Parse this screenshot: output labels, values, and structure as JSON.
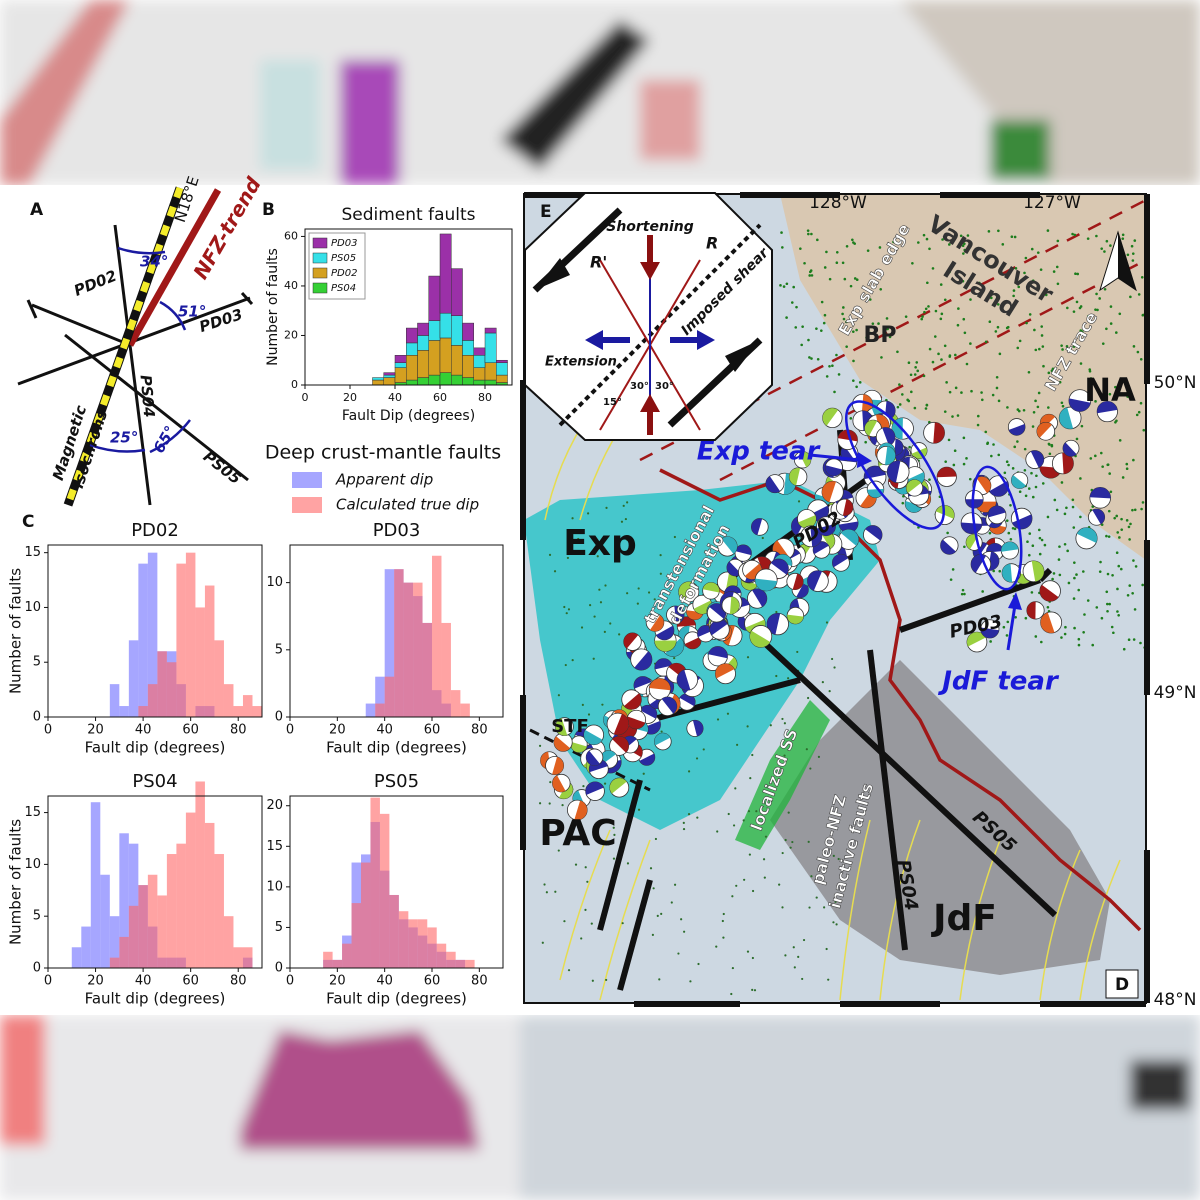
{
  "panel_a": {
    "label": "A",
    "n18": "N18°E",
    "nfz": "NFZ-trend",
    "a34": "34°",
    "a51": "51°",
    "pd02": "PD02",
    "pd03": "PD03",
    "ps04": "PS04",
    "ps05": "PS05",
    "a25": "25°",
    "a65": "65°",
    "isochrons": [
      "Magnetic",
      "isochrons"
    ]
  },
  "panel_b_label": "B",
  "panel_c_label": "C",
  "legend_c": {
    "title": "Deep crust-mantle faults",
    "items": [
      {
        "name": "Apparent dip",
        "color": "#6b6bff"
      },
      {
        "name": "Calculated true dip",
        "color": "#ff6666"
      }
    ]
  },
  "chart_data": [
    {
      "type": "histogram",
      "title": "Sediment faults",
      "xlabel": "Fault Dip (degrees)",
      "ylabel": "Number of faults",
      "stacked": true,
      "legend": "upper left",
      "bins": [
        30,
        35,
        40,
        45,
        50,
        55,
        60,
        65,
        70,
        75,
        80,
        85,
        90
      ],
      "xlim": [
        0,
        92
      ],
      "ylim": [
        0,
        63
      ],
      "xticks": [
        0,
        20,
        40,
        60,
        80
      ],
      "yticks": [
        0,
        20,
        40,
        60
      ],
      "series": [
        {
          "name": "PD03",
          "color": "#9b30a8",
          "values": [
            0,
            1,
            3,
            6,
            5,
            18,
            32,
            19,
            7,
            3,
            2,
            1
          ]
        },
        {
          "name": "PS05",
          "color": "#35e0e8",
          "values": [
            1,
            1,
            2,
            5,
            6,
            8,
            10,
            12,
            6,
            5,
            12,
            5
          ]
        },
        {
          "name": "PD02",
          "color": "#d4a020",
          "values": [
            2,
            3,
            6,
            10,
            11,
            14,
            14,
            12,
            9,
            5,
            7,
            3
          ]
        },
        {
          "name": "PS04",
          "color": "#35d035",
          "values": [
            0,
            0,
            1,
            2,
            3,
            4,
            5,
            4,
            3,
            2,
            2,
            1
          ]
        }
      ]
    },
    {
      "type": "histogram",
      "title": "PD02",
      "xlabel": "Fault dip (degrees)",
      "ylabel": "Number of faults",
      "bins": [
        26,
        30,
        34,
        38,
        42,
        46,
        50,
        54,
        58,
        62,
        66,
        70,
        74,
        78,
        82,
        86,
        90
      ],
      "xlim": [
        0,
        90
      ],
      "ylim": [
        0,
        15.7
      ],
      "xticks": [
        0,
        20,
        40,
        60,
        80
      ],
      "yticks": [
        0,
        5,
        10,
        15
      ],
      "series": [
        {
          "values": [
            3,
            1,
            7,
            14,
            15,
            6,
            6,
            3,
            0,
            1,
            1,
            0,
            0,
            0,
            0,
            0
          ]
        },
        {
          "values": [
            0,
            0,
            0,
            1,
            3,
            6,
            5,
            14,
            15,
            10,
            12,
            7,
            3,
            1,
            2,
            1
          ]
        }
      ]
    },
    {
      "type": "histogram",
      "title": "PD03",
      "xlabel": "Fault dip (degrees)",
      "bins": [
        32,
        36,
        40,
        44,
        48,
        52,
        56,
        60,
        64,
        68,
        72,
        76
      ],
      "xlim": [
        0,
        90
      ],
      "ylim": [
        0,
        12.8
      ],
      "xticks": [
        0,
        20,
        40,
        60,
        80
      ],
      "yticks": [
        0,
        5,
        10
      ],
      "series": [
        {
          "values": [
            1,
            3,
            11,
            11,
            10,
            9,
            7,
            2,
            1,
            0,
            0
          ]
        },
        {
          "values": [
            0,
            1,
            3,
            11,
            10,
            10,
            7,
            12,
            7,
            2,
            1
          ]
        }
      ]
    },
    {
      "type": "histogram",
      "title": "PS04",
      "xlabel": "Fault dip (degrees)",
      "ylabel": "Number of faults",
      "bins": [
        10,
        14,
        18,
        22,
        26,
        30,
        34,
        38,
        42,
        46,
        50,
        54,
        58,
        62,
        66,
        70,
        74,
        78,
        82,
        86
      ],
      "xlim": [
        0,
        90
      ],
      "ylim": [
        0,
        16.6
      ],
      "xticks": [
        0,
        20,
        40,
        60,
        80
      ],
      "yticks": [
        0,
        5,
        10,
        15
      ],
      "series": [
        {
          "values": [
            2,
            4,
            16,
            9,
            5,
            13,
            12,
            8,
            4,
            1,
            1,
            1,
            0,
            0,
            0,
            0,
            0,
            0,
            1
          ]
        },
        {
          "values": [
            0,
            0,
            0,
            0,
            1,
            3,
            6,
            8,
            9,
            7,
            11,
            12,
            15,
            18,
            14,
            11,
            5,
            2,
            2
          ]
        }
      ]
    },
    {
      "type": "histogram",
      "title": "PS05",
      "xlabel": "Fault dip (degrees)",
      "bins": [
        14,
        18,
        22,
        26,
        30,
        34,
        38,
        42,
        46,
        50,
        54,
        58,
        62,
        66,
        70,
        74,
        78
      ],
      "xlim": [
        0,
        90
      ],
      "ylim": [
        0,
        21.2
      ],
      "xticks": [
        0,
        20,
        40,
        60,
        80
      ],
      "yticks": [
        0,
        5,
        10,
        15,
        20
      ],
      "series": [
        {
          "values": [
            1,
            1,
            4,
            13,
            14,
            18,
            12,
            9,
            6,
            5,
            4,
            3,
            2,
            1,
            1,
            0
          ]
        },
        {
          "values": [
            2,
            1,
            3,
            8,
            13,
            21,
            19,
            9,
            7,
            6,
            6,
            5,
            3,
            2,
            1,
            1
          ]
        }
      ]
    }
  ],
  "map": {
    "panel_label": "D",
    "inset_label": "E",
    "lon_ticks": [
      "128°W",
      "127°W"
    ],
    "lat_ticks": [
      "50°N",
      "49°N",
      "48°N"
    ],
    "exp": "Exp",
    "pac": "PAC",
    "jdf": "JdF",
    "na": "NA",
    "bp": "BP",
    "stf": "STF",
    "vancouver": [
      "Vancouver",
      "Island"
    ],
    "slab_edge": "Exp slab edge",
    "nfz_trace": "NFZ trace",
    "exp_tear": "Exp tear",
    "jdf_tear": "JdF tear",
    "transtensional": [
      "transtensional",
      "deformation"
    ],
    "localized": "localized SS",
    "paleo": [
      "paleo-NFZ",
      "inactive faults"
    ],
    "pd02": "PD02",
    "pd03": "PD03",
    "ps04": "PS04",
    "ps05": "PS05",
    "inset": {
      "shortening": "Shortening",
      "r": "R",
      "r_prime": "R'",
      "extension": "Extension",
      "imposed_shear": "Imposed shear",
      "angles": [
        "15°",
        "30°",
        "30°"
      ]
    }
  }
}
